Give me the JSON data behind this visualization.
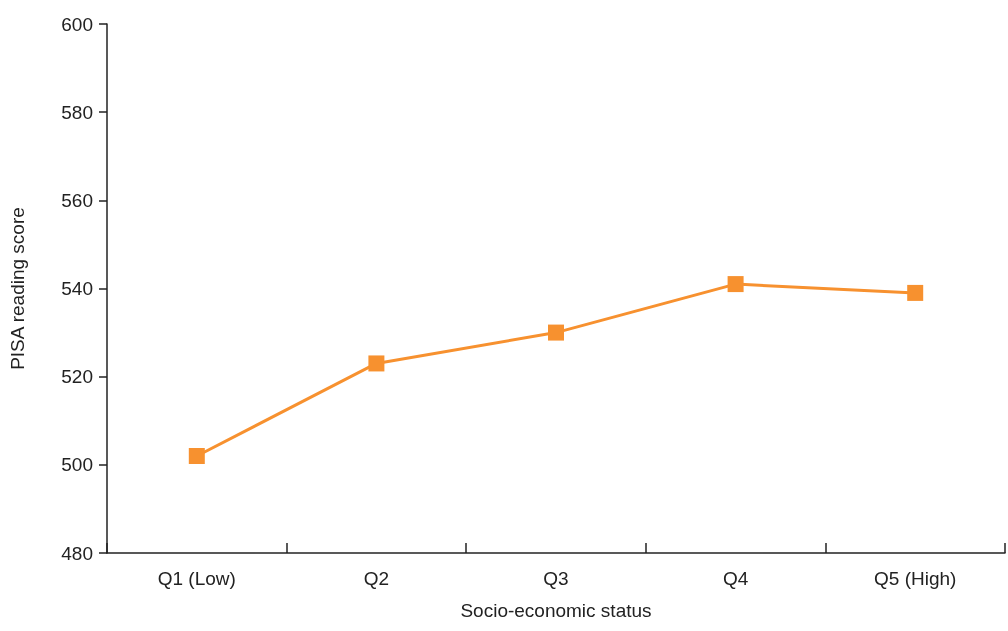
{
  "chart_data": {
    "type": "line",
    "xlabel": "Socio-economic status",
    "ylabel": "PISA reading score",
    "categories": [
      "Q1 (Low)",
      "Q2",
      "Q3",
      "Q4",
      "Q5 (High)"
    ],
    "series": [
      {
        "color": "#f7912f",
        "values": [
          502,
          523,
          530,
          541,
          539
        ]
      }
    ],
    "ylim": [
      480,
      600
    ],
    "yticks": [
      480,
      500,
      520,
      540,
      560,
      580,
      600
    ],
    "grid": false,
    "marker": "square",
    "line_style": "solid"
  }
}
